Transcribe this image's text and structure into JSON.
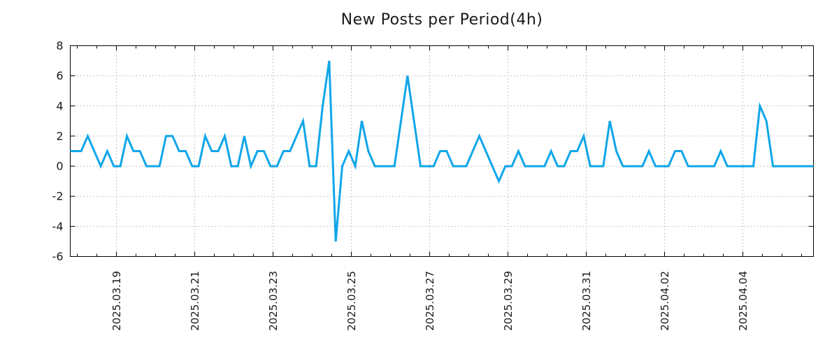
{
  "chart_data": {
    "type": "line",
    "title": "New Posts per Period(4h)",
    "sample_interval_hours": 4,
    "x_tick_labels": [
      "2025.03.19",
      "2025.03.21",
      "2025.03.23",
      "2025.03.25",
      "2025.03.27",
      "2025.03.29",
      "2025.03.31",
      "2025.04.02",
      "2025.04.04"
    ],
    "y_ticks": [
      8,
      6,
      4,
      2,
      0,
      -2,
      -4,
      -6
    ],
    "ylim": [
      -6,
      8
    ],
    "grid": "dotted",
    "legend": "none",
    "line_color": "#10a6e9",
    "grid_color": "#b3b3b3",
    "axis_color": "#000000",
    "background": "#ffffff",
    "values": [
      1,
      1,
      2,
      1,
      0,
      1,
      0,
      0,
      2,
      1,
      1,
      0,
      0,
      0,
      2,
      2,
      1,
      1,
      0,
      0,
      2,
      1,
      1,
      2,
      0,
      0,
      2,
      0,
      1,
      1,
      0,
      0,
      1,
      1,
      2,
      3,
      0,
      0,
      4,
      7,
      -5,
      0,
      1,
      0,
      3,
      1,
      0,
      0,
      0,
      0,
      3,
      6,
      3,
      0,
      0,
      0,
      1,
      1,
      0,
      0,
      0,
      1,
      2,
      1,
      0,
      -1,
      0,
      0,
      1,
      0,
      0,
      0,
      0,
      1,
      0,
      0,
      1,
      1,
      2,
      0,
      0,
      0,
      3,
      1,
      0,
      0,
      0,
      0,
      1,
      0,
      0,
      0,
      1,
      1,
      0,
      0,
      0,
      0,
      0,
      1,
      0,
      0,
      0,
      0,
      0,
      4,
      3,
      0,
      0,
      0,
      0,
      0,
      0,
      0
    ]
  }
}
